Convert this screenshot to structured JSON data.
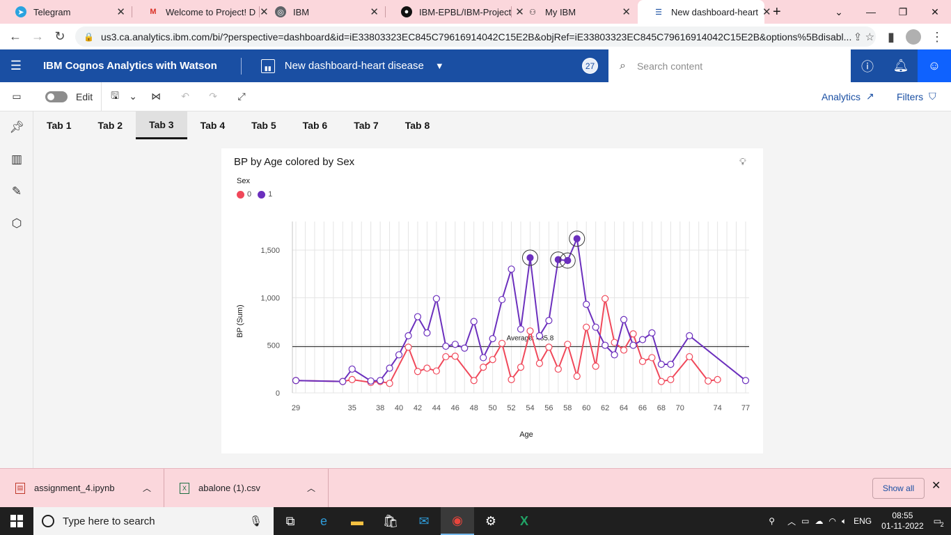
{
  "browser": {
    "tabs": [
      {
        "title": "Telegram",
        "icon": "telegram-icon",
        "active": false
      },
      {
        "title": "Welcome to Project! D",
        "icon": "gmail-icon",
        "active": false
      },
      {
        "title": "IBM",
        "icon": "globe-icon",
        "active": false
      },
      {
        "title": "IBM-EPBL/IBM-Project",
        "icon": "github-icon",
        "active": false
      },
      {
        "title": "My IBM",
        "icon": "ibm-icon",
        "active": false
      },
      {
        "title": "New dashboard-heart",
        "icon": "cognos-icon",
        "active": true
      }
    ],
    "url": "us3.ca.analytics.ibm.com/bi/?perspective=dashboard&id=iE33803323EC845C79616914042C15E2B&objRef=iE33803323EC845C79616914042C15E2B&options%5Bdisabl..."
  },
  "header": {
    "brand": "IBM Cognos Analytics with Watson",
    "dashboard_title": "New dashboard-heart disease",
    "badge_count": "27",
    "search_placeholder": "Search content"
  },
  "toolbar": {
    "edit_label": "Edit",
    "analytics_label": "Analytics",
    "filters_label": "Filters"
  },
  "tabs": [
    "Tab 1",
    "Tab 2",
    "Tab 3",
    "Tab 4",
    "Tab 5",
    "Tab 6",
    "Tab 7",
    "Tab 8"
  ],
  "active_tab": "Tab 3",
  "widget": {
    "title": "BP by Age colored by Sex",
    "legend_title": "Sex",
    "legend": [
      {
        "label": "0",
        "color": "#f0485a"
      },
      {
        "label": "1",
        "color": "#6b2fbd"
      }
    ]
  },
  "chart_data": {
    "type": "line",
    "title": "BP by Age colored by Sex",
    "xlabel": "Age",
    "ylabel": "BP (Sum)",
    "ylim": [
      0,
      1800
    ],
    "yticks": [
      0,
      500,
      1000,
      1500
    ],
    "ytick_labels": [
      "0",
      "500",
      "1,000",
      "1,500"
    ],
    "xlim": [
      29,
      77
    ],
    "xtick_labels": [
      "29",
      "35",
      "38",
      "40",
      "42",
      "44",
      "46",
      "48",
      "50",
      "52",
      "54",
      "56",
      "58",
      "60",
      "62",
      "64",
      "66",
      "68",
      "70",
      "74",
      "77"
    ],
    "average": {
      "label": "Average: 485.8",
      "value": 485.8
    },
    "series": [
      {
        "name": "0",
        "color": "#f0485a",
        "points": [
          [
            29,
            130
          ],
          [
            34,
            120
          ],
          [
            35,
            140
          ],
          [
            37,
            110
          ],
          [
            38,
            120
          ],
          [
            39,
            100
          ],
          [
            41,
            480
          ],
          [
            42,
            225
          ],
          [
            43,
            260
          ],
          [
            44,
            230
          ],
          [
            45,
            380
          ],
          [
            46,
            385
          ],
          [
            48,
            130
          ],
          [
            49,
            270
          ],
          [
            50,
            350
          ],
          [
            51,
            520
          ],
          [
            52,
            140
          ],
          [
            53,
            270
          ],
          [
            54,
            650
          ],
          [
            55,
            310
          ],
          [
            56,
            480
          ],
          [
            57,
            250
          ],
          [
            58,
            510
          ],
          [
            59,
            175
          ],
          [
            60,
            690
          ],
          [
            61,
            280
          ],
          [
            62,
            990
          ],
          [
            63,
            530
          ],
          [
            64,
            450
          ],
          [
            65,
            620
          ],
          [
            66,
            330
          ],
          [
            67,
            370
          ],
          [
            68,
            120
          ],
          [
            69,
            140
          ],
          [
            71,
            380
          ],
          [
            73,
            125
          ],
          [
            74,
            140
          ]
        ]
      },
      {
        "name": "1",
        "color": "#6b2fbd",
        "points": [
          [
            29,
            130
          ],
          [
            34,
            120
          ],
          [
            35,
            250
          ],
          [
            37,
            125
          ],
          [
            38,
            130
          ],
          [
            39,
            260
          ],
          [
            40,
            400
          ],
          [
            41,
            600
          ],
          [
            42,
            800
          ],
          [
            43,
            630
          ],
          [
            44,
            990
          ],
          [
            45,
            490
          ],
          [
            46,
            510
          ],
          [
            47,
            470
          ],
          [
            48,
            750
          ],
          [
            49,
            370
          ],
          [
            50,
            570
          ],
          [
            51,
            980
          ],
          [
            52,
            1300
          ],
          [
            53,
            670
          ],
          [
            54,
            1420
          ],
          [
            55,
            600
          ],
          [
            56,
            760
          ],
          [
            57,
            1400
          ],
          [
            58,
            1390
          ],
          [
            59,
            1620
          ],
          [
            60,
            930
          ],
          [
            61,
            690
          ],
          [
            62,
            500
          ],
          [
            63,
            400
          ],
          [
            64,
            770
          ],
          [
            65,
            500
          ],
          [
            66,
            560
          ],
          [
            67,
            630
          ],
          [
            68,
            300
          ],
          [
            69,
            300
          ],
          [
            71,
            600
          ],
          [
            77,
            130
          ]
        ]
      }
    ],
    "highlighted_points": [
      [
        54,
        1420
      ],
      [
        57,
        1400
      ],
      [
        58,
        1390
      ],
      [
        59,
        1620
      ]
    ],
    "grid": true
  },
  "downloads": [
    {
      "name": "assignment_4.ipynb"
    },
    {
      "name": "abalone (1).csv"
    }
  ],
  "downloads_show_all": "Show all",
  "taskbar": {
    "search_placeholder": "Type here to search",
    "lang": "ENG",
    "time": "08:55",
    "date": "01-11-2022",
    "notification_count": "2"
  }
}
